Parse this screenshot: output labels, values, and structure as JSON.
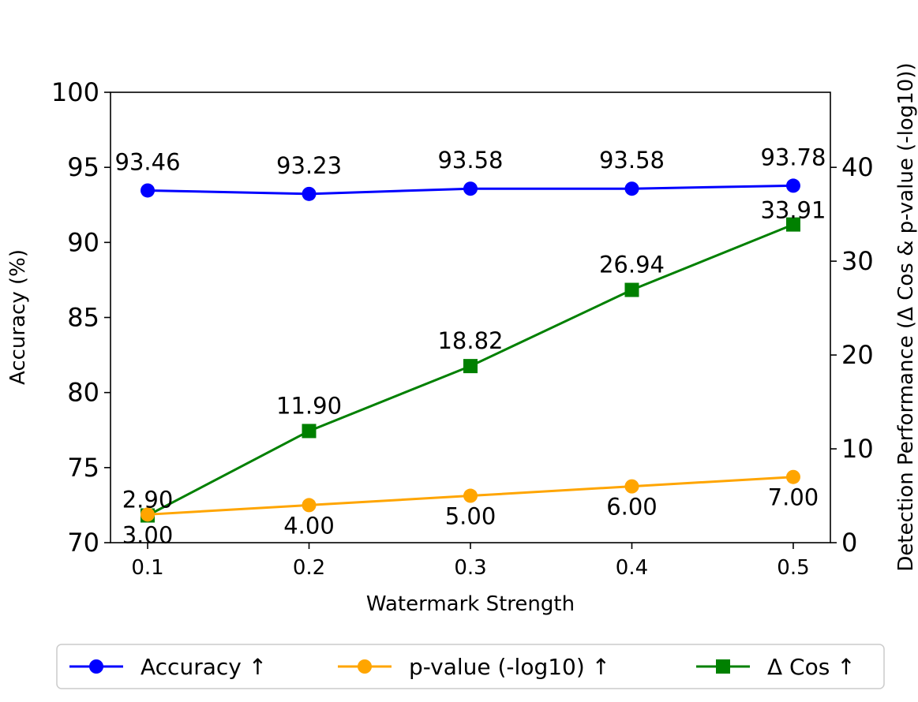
{
  "chart_data": {
    "type": "line",
    "title": "",
    "xlabel": "Watermark Strength",
    "ylabel": "Accuracy (%)",
    "ylabel_right": "Detection Performance (Δ Cos & p-value (-log10))",
    "x": [
      0.1,
      0.2,
      0.3,
      0.4,
      0.5
    ],
    "x_tick_labels": [
      "0.1",
      "0.2",
      "0.3",
      "0.4",
      "0.5"
    ],
    "xlim": [
      0.077,
      0.523
    ],
    "ylim": [
      70,
      100
    ],
    "ylim_right": [
      0,
      48
    ],
    "y_ticks_left": [
      "70",
      "75",
      "80",
      "85",
      "90",
      "95",
      "100"
    ],
    "y_ticks_right": [
      "0",
      "10",
      "20",
      "30",
      "40"
    ],
    "grid": false,
    "legend_position": "bottom",
    "series": [
      {
        "name": "Accuracy ↑",
        "axis": "left",
        "marker": "circle",
        "color": "#0000ff",
        "values": [
          93.46,
          93.23,
          93.58,
          93.58,
          93.78
        ],
        "labels": [
          "93.46",
          "93.23",
          "93.58",
          "93.58",
          "93.78"
        ]
      },
      {
        "name": "p-value (-log10) ↑",
        "axis": "right",
        "marker": "circle",
        "color": "#ffa500",
        "values": [
          3.0,
          4.0,
          5.0,
          6.0,
          7.0
        ],
        "labels": [
          "3.00",
          "4.00",
          "5.00",
          "6.00",
          "7.00"
        ]
      },
      {
        "name": "Δ Cos ↑",
        "axis": "right",
        "marker": "square",
        "color": "#008000",
        "values": [
          2.9,
          11.9,
          18.82,
          26.94,
          33.91
        ],
        "labels": [
          "2.90",
          "11.90",
          "18.82",
          "26.94",
          "33.91"
        ]
      }
    ]
  }
}
